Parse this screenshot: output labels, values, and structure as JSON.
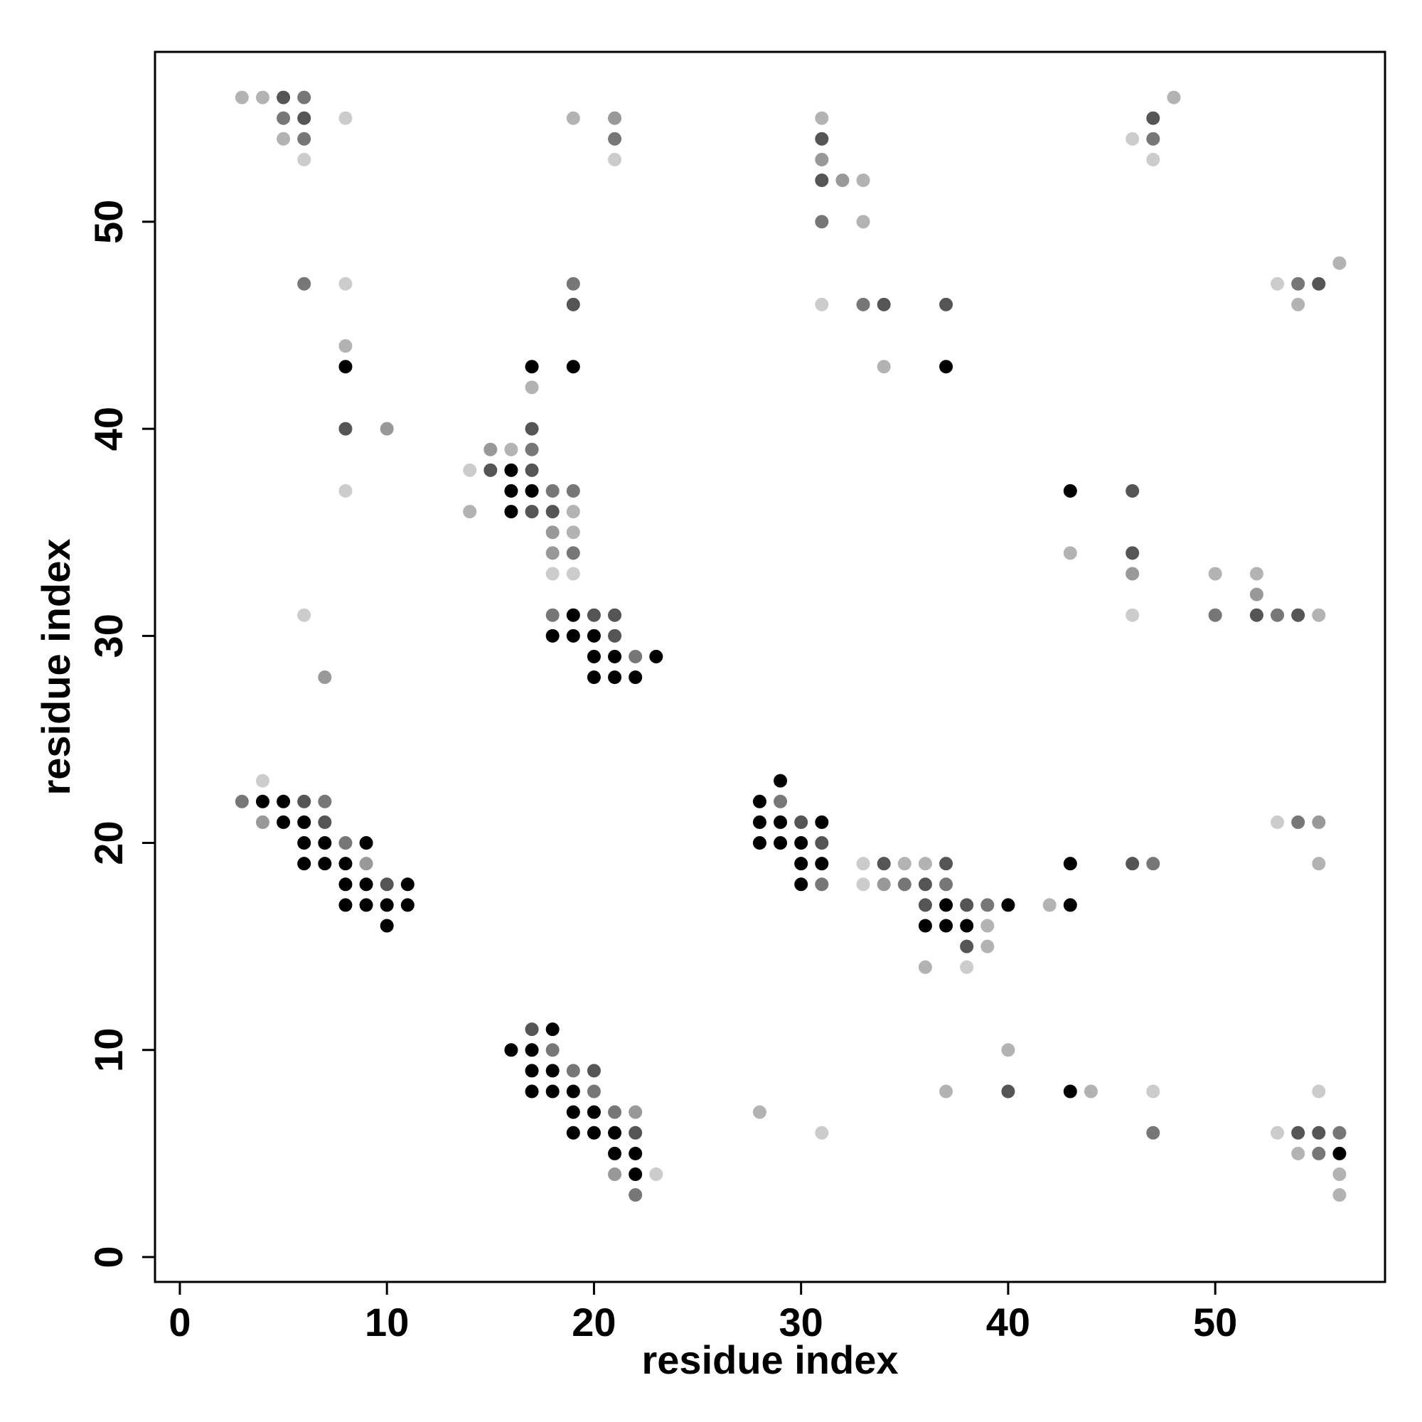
{
  "chart_data": {
    "type": "scatter",
    "title": "",
    "xlabel": "residue index",
    "ylabel": "residue index",
    "xlim": [
      -1.2,
      58.2
    ],
    "ylim": [
      -1.2,
      58.2
    ],
    "xticks": [
      0,
      10,
      20,
      30,
      40,
      50
    ],
    "yticks": [
      0,
      10,
      20,
      30,
      40,
      50
    ],
    "grid": false,
    "legend": "none",
    "value_meaning": "darkness level 0 (lightest gray) to 5 (black)",
    "shade_colors": [
      "#cccccc",
      "#b3b3b3",
      "#999999",
      "#777777",
      "#555555",
      "#000000"
    ],
    "points": [
      [
        3,
        56,
        1
      ],
      [
        4,
        56,
        1
      ],
      [
        5,
        56,
        4
      ],
      [
        6,
        56,
        3
      ],
      [
        5,
        55,
        3
      ],
      [
        6,
        55,
        4
      ],
      [
        8,
        55,
        0
      ],
      [
        5,
        54,
        1
      ],
      [
        6,
        54,
        3
      ],
      [
        6,
        53,
        0
      ],
      [
        19,
        55,
        1
      ],
      [
        21,
        55,
        2
      ],
      [
        21,
        54,
        3
      ],
      [
        21,
        53,
        0
      ],
      [
        31,
        55,
        1
      ],
      [
        31,
        54,
        4
      ],
      [
        31,
        53,
        2
      ],
      [
        31,
        52,
        4
      ],
      [
        32,
        52,
        2
      ],
      [
        33,
        52,
        1
      ],
      [
        31,
        50,
        3
      ],
      [
        33,
        50,
        1
      ],
      [
        48,
        56,
        1
      ],
      [
        47,
        55,
        4
      ],
      [
        46,
        54,
        0
      ],
      [
        47,
        54,
        3
      ],
      [
        47,
        53,
        0
      ],
      [
        56,
        48,
        1
      ],
      [
        53,
        47,
        0
      ],
      [
        54,
        47,
        3
      ],
      [
        55,
        47,
        4
      ],
      [
        54,
        46,
        1
      ],
      [
        6,
        47,
        3
      ],
      [
        8,
        47,
        0
      ],
      [
        8,
        44,
        1
      ],
      [
        8,
        43,
        5
      ],
      [
        8,
        40,
        4
      ],
      [
        10,
        40,
        2
      ],
      [
        8,
        37,
        0
      ],
      [
        19,
        47,
        3
      ],
      [
        19,
        46,
        4
      ],
      [
        19,
        43,
        5
      ],
      [
        17,
        43,
        5
      ],
      [
        17,
        42,
        1
      ],
      [
        17,
        40,
        4
      ],
      [
        15,
        39,
        2
      ],
      [
        16,
        39,
        1
      ],
      [
        17,
        39,
        3
      ],
      [
        14,
        38,
        0
      ],
      [
        15,
        38,
        4
      ],
      [
        16,
        38,
        5
      ],
      [
        17,
        38,
        4
      ],
      [
        16,
        37,
        5
      ],
      [
        17,
        37,
        5
      ],
      [
        18,
        37,
        3
      ],
      [
        19,
        37,
        3
      ],
      [
        14,
        36,
        1
      ],
      [
        16,
        36,
        5
      ],
      [
        17,
        36,
        4
      ],
      [
        18,
        36,
        4
      ],
      [
        19,
        36,
        1
      ],
      [
        18,
        35,
        2
      ],
      [
        19,
        35,
        1
      ],
      [
        18,
        34,
        2
      ],
      [
        19,
        34,
        3
      ],
      [
        18,
        33,
        0
      ],
      [
        19,
        33,
        0
      ],
      [
        31,
        46,
        0
      ],
      [
        33,
        46,
        3
      ],
      [
        34,
        46,
        4
      ],
      [
        37,
        46,
        4
      ],
      [
        34,
        43,
        1
      ],
      [
        37,
        43,
        5
      ],
      [
        43,
        37,
        5
      ],
      [
        46,
        37,
        4
      ],
      [
        43,
        34,
        1
      ],
      [
        46,
        34,
        4
      ],
      [
        46,
        33,
        2
      ],
      [
        46,
        31,
        0
      ],
      [
        50,
        33,
        1
      ],
      [
        52,
        33,
        1
      ],
      [
        52,
        32,
        2
      ],
      [
        50,
        31,
        3
      ],
      [
        52,
        31,
        4
      ],
      [
        53,
        31,
        3
      ],
      [
        54,
        31,
        4
      ],
      [
        55,
        31,
        1
      ],
      [
        6,
        31,
        0
      ],
      [
        7,
        28,
        2
      ],
      [
        18,
        31,
        3
      ],
      [
        19,
        31,
        5
      ],
      [
        20,
        31,
        4
      ],
      [
        21,
        31,
        4
      ],
      [
        18,
        30,
        5
      ],
      [
        19,
        30,
        5
      ],
      [
        20,
        30,
        5
      ],
      [
        21,
        30,
        4
      ],
      [
        20,
        29,
        5
      ],
      [
        21,
        29,
        5
      ],
      [
        22,
        29,
        3
      ],
      [
        23,
        29,
        5
      ],
      [
        20,
        28,
        5
      ],
      [
        21,
        28,
        5
      ],
      [
        22,
        28,
        5
      ],
      [
        4,
        23,
        0
      ],
      [
        3,
        22,
        3
      ],
      [
        4,
        22,
        5
      ],
      [
        5,
        22,
        5
      ],
      [
        6,
        22,
        4
      ],
      [
        7,
        22,
        3
      ],
      [
        4,
        21,
        2
      ],
      [
        5,
        21,
        5
      ],
      [
        6,
        21,
        5
      ],
      [
        7,
        21,
        4
      ],
      [
        6,
        20,
        5
      ],
      [
        7,
        20,
        5
      ],
      [
        8,
        20,
        3
      ],
      [
        9,
        20,
        5
      ],
      [
        6,
        19,
        5
      ],
      [
        7,
        19,
        5
      ],
      [
        8,
        19,
        5
      ],
      [
        9,
        19,
        2
      ],
      [
        8,
        18,
        5
      ],
      [
        9,
        18,
        5
      ],
      [
        10,
        18,
        4
      ],
      [
        11,
        18,
        5
      ],
      [
        8,
        17,
        5
      ],
      [
        9,
        17,
        5
      ],
      [
        10,
        17,
        5
      ],
      [
        11,
        17,
        5
      ],
      [
        10,
        16,
        5
      ],
      [
        29,
        23,
        5
      ],
      [
        28,
        22,
        5
      ],
      [
        29,
        22,
        3
      ],
      [
        28,
        21,
        5
      ],
      [
        29,
        21,
        5
      ],
      [
        30,
        21,
        4
      ],
      [
        31,
        21,
        5
      ],
      [
        28,
        20,
        5
      ],
      [
        29,
        20,
        5
      ],
      [
        30,
        20,
        5
      ],
      [
        31,
        20,
        4
      ],
      [
        30,
        19,
        5
      ],
      [
        31,
        19,
        5
      ],
      [
        30,
        18,
        5
      ],
      [
        31,
        18,
        3
      ],
      [
        33,
        19,
        0
      ],
      [
        34,
        19,
        4
      ],
      [
        35,
        19,
        1
      ],
      [
        36,
        19,
        1
      ],
      [
        37,
        19,
        4
      ],
      [
        33,
        18,
        0
      ],
      [
        34,
        18,
        2
      ],
      [
        35,
        18,
        3
      ],
      [
        36,
        18,
        4
      ],
      [
        37,
        18,
        3
      ],
      [
        36,
        17,
        4
      ],
      [
        37,
        17,
        5
      ],
      [
        38,
        17,
        4
      ],
      [
        39,
        17,
        3
      ],
      [
        40,
        17,
        5
      ],
      [
        42,
        17,
        1
      ],
      [
        43,
        17,
        5
      ],
      [
        36,
        16,
        5
      ],
      [
        37,
        16,
        5
      ],
      [
        38,
        16,
        5
      ],
      [
        39,
        16,
        1
      ],
      [
        38,
        15,
        4
      ],
      [
        39,
        15,
        1
      ],
      [
        36,
        14,
        1
      ],
      [
        38,
        14,
        0
      ],
      [
        43,
        19,
        5
      ],
      [
        46,
        19,
        4
      ],
      [
        47,
        19,
        3
      ],
      [
        53,
        21,
        0
      ],
      [
        54,
        21,
        3
      ],
      [
        55,
        21,
        2
      ],
      [
        55,
        19,
        1
      ],
      [
        16,
        10,
        5
      ],
      [
        17,
        11,
        4
      ],
      [
        18,
        11,
        5
      ],
      [
        17,
        10,
        5
      ],
      [
        18,
        10,
        3
      ],
      [
        17,
        9,
        5
      ],
      [
        18,
        9,
        5
      ],
      [
        19,
        9,
        3
      ],
      [
        20,
        9,
        4
      ],
      [
        17,
        8,
        5
      ],
      [
        18,
        8,
        5
      ],
      [
        19,
        8,
        5
      ],
      [
        20,
        8,
        3
      ],
      [
        19,
        7,
        5
      ],
      [
        20,
        7,
        5
      ],
      [
        21,
        7,
        3
      ],
      [
        22,
        7,
        2
      ],
      [
        19,
        6,
        5
      ],
      [
        20,
        6,
        5
      ],
      [
        21,
        6,
        5
      ],
      [
        22,
        6,
        4
      ],
      [
        21,
        5,
        5
      ],
      [
        22,
        5,
        5
      ],
      [
        21,
        4,
        2
      ],
      [
        22,
        4,
        5
      ],
      [
        23,
        4,
        0
      ],
      [
        22,
        3,
        3
      ],
      [
        28,
        7,
        1
      ],
      [
        31,
        6,
        0
      ],
      [
        37,
        8,
        1
      ],
      [
        40,
        10,
        1
      ],
      [
        40,
        8,
        4
      ],
      [
        43,
        8,
        5
      ],
      [
        44,
        8,
        1
      ],
      [
        47,
        8,
        0
      ],
      [
        47,
        6,
        3
      ],
      [
        55,
        8,
        0
      ],
      [
        53,
        6,
        0
      ],
      [
        54,
        6,
        4
      ],
      [
        55,
        6,
        4
      ],
      [
        56,
        6,
        3
      ],
      [
        54,
        5,
        1
      ],
      [
        55,
        5,
        3
      ],
      [
        56,
        5,
        5
      ],
      [
        56,
        4,
        1
      ],
      [
        56,
        3,
        1
      ]
    ]
  }
}
